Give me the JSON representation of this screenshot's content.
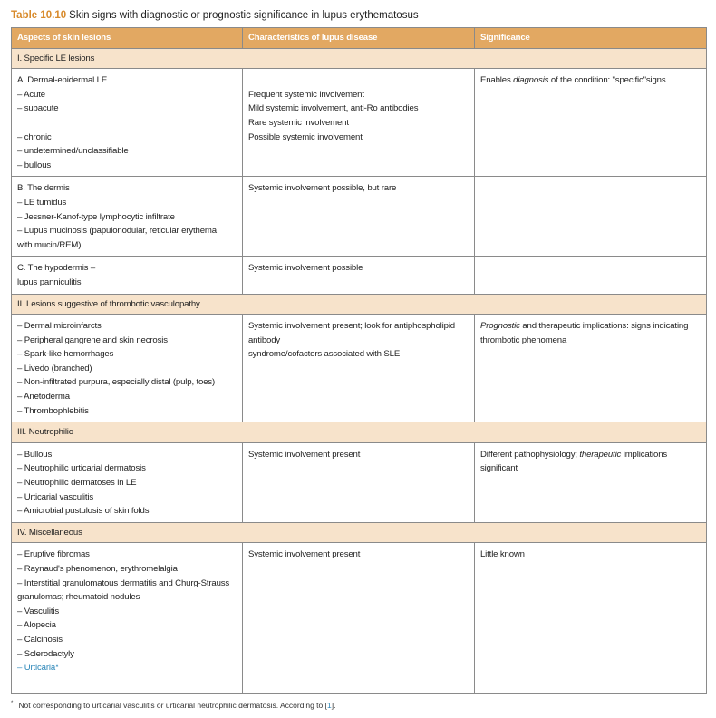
{
  "title": {
    "number": "Table 10.10",
    "text": "Skin signs with diagnostic or prognostic significance in lupus erythematosus"
  },
  "colors": {
    "header": "#e2a862",
    "section": "#f7e3cb",
    "accent": "#d88a2a",
    "link": "#2a86b8"
  },
  "headers": [
    "Aspects of skin lesions",
    "Characteristics of lupus disease",
    "Significance"
  ],
  "rows": [
    {
      "type": "section",
      "label": "I. Specific LE lesions"
    },
    {
      "type": "body",
      "height": 106,
      "col1": [
        "A. Dermal-epidermal LE",
        "– Acute",
        "– subacute",
        "",
        "– chronic",
        "– undetermined/unclassifiable",
        "– bullous"
      ],
      "col2": [
        "",
        "Frequent systemic involvement",
        "Mild systemic involvement, anti-Ro antibodies",
        "Rare systemic involvement",
        "Possible systemic involvement"
      ],
      "col3": [
        [
          "Enables ",
          "diagnosis",
          " of the condition: \"specific\"signs"
        ]
      ]
    },
    {
      "type": "body",
      "height": 72,
      "col1": [
        "B. The dermis",
        "– LE tumidus",
        "– Jessner-Kanof-type lymphocytic infiltrate",
        "– Lupus mucinosis (papulonodular, reticular erythema",
        "with mucin/REM)"
      ],
      "col2": [
        "Systemic involvement possible, but rare"
      ],
      "col3": []
    },
    {
      "type": "body",
      "height": 30,
      "col1": [
        "C. The hypodermis –",
        "lupus panniculitis"
      ],
      "col2": [
        "Systemic involvement possible"
      ],
      "col3": []
    },
    {
      "type": "section",
      "label": "II. Lesions suggestive of thrombotic vasculopathy"
    },
    {
      "type": "body",
      "height": 106,
      "col1": [
        "– Dermal microinfarcts",
        "– Peripheral gangrene and skin necrosis",
        "– Spark-like hemorrhages",
        "– Livedo (branched)",
        "– Non-infiltrated purpura, especially distal (pulp, toes)",
        "– Anetoderma",
        "– Thrombophlebitis"
      ],
      "col2": [
        "Systemic involvement present; look for antiphospholipid antibody",
        "syndrome/cofactors associated with SLE"
      ],
      "col3": [
        [
          "",
          "Prognostic",
          " and therapeutic implications: signs indicating"
        ],
        [
          "thrombotic phenomena",
          "",
          ""
        ]
      ]
    },
    {
      "type": "section",
      "label": "III. Neutrophilic"
    },
    {
      "type": "body",
      "height": 75,
      "col1": [
        "– Bullous",
        "– Neutrophilic urticarial dermatosis",
        "– Neutrophilic dermatoses in LE",
        "– Urticarial vasculitis",
        "– Amicrobial pustulosis of skin folds"
      ],
      "col2": [
        "Systemic involvement present"
      ],
      "col3": [
        [
          "Different pathophysiology; ",
          "therapeutic",
          " implications"
        ],
        [
          "significant",
          "",
          ""
        ]
      ]
    },
    {
      "type": "section",
      "label": "IV. Miscellaneous"
    },
    {
      "type": "body",
      "height": 152,
      "col1": [
        "– Eruptive fibromas",
        "– Raynaud's phenomenon, erythromelalgia",
        "– Interstitial granulomatous dermatitis and Churg-Strauss",
        "granulomas; rheumatoid nodules",
        "– Vasculitis",
        "– Alopecia",
        "– Calcinosis",
        "– Sclerodactyly",
        "– Urticaria*",
        "…"
      ],
      "link_item": "– Urticaria*",
      "col2": [
        "Systemic involvement present"
      ],
      "col3": [
        [
          "Little known",
          "",
          ""
        ]
      ]
    }
  ],
  "footnote": {
    "marker": "*",
    "text": "Not corresponding to urticarial vasculitis or urticarial neutrophilic dermatosis. According to [",
    "ref": "1",
    "end": "]."
  }
}
